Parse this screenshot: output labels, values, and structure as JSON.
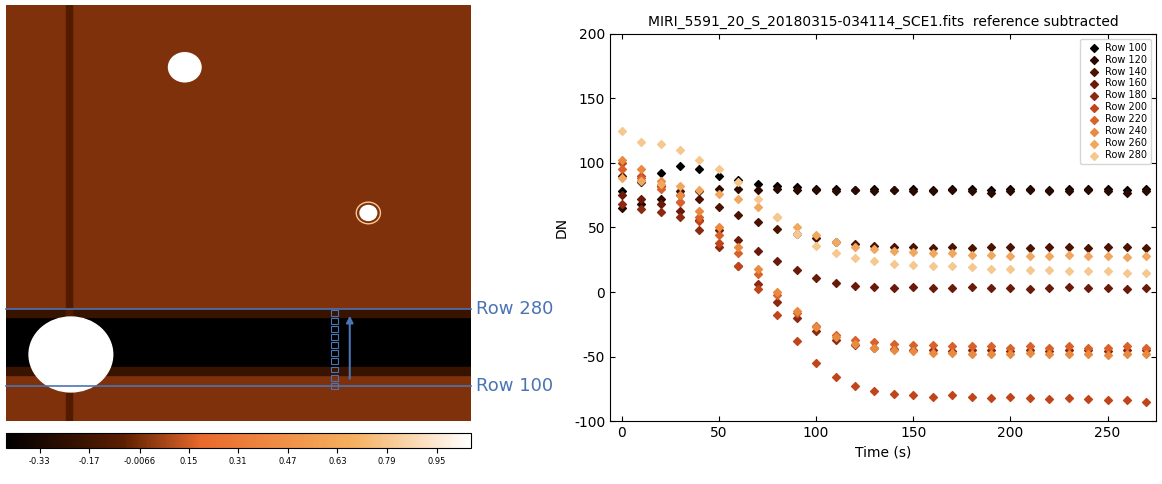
{
  "image_panel": {
    "row_labels": {
      "top": "Row 280",
      "bottom": "Row 100"
    },
    "colorbar": {
      "range": [
        -0.44,
        1.06
      ],
      "ticks": [
        -0.33,
        -0.17,
        -0.0066,
        0.15,
        0.31,
        0.47,
        0.63,
        0.79,
        0.95
      ]
    }
  },
  "chart_data": {
    "type": "scatter",
    "title": "MIRI_5591_20_S_20180315-034114_SCE1.fits  reference subtracted",
    "x_label": "Time (s)",
    "y_label": "DN",
    "x": [
      0,
      10,
      20,
      30,
      40,
      50,
      60,
      70,
      80,
      90,
      100,
      110,
      120,
      130,
      140,
      150,
      160,
      170,
      180,
      190,
      200,
      210,
      220,
      230,
      240,
      250,
      260,
      270
    ],
    "xlim": [
      -6,
      275
    ],
    "xticks": [
      0,
      50,
      100,
      150,
      200,
      250
    ],
    "ylim": [
      -100,
      200
    ],
    "yticks": [
      -100,
      -50,
      0,
      50,
      100,
      150,
      200
    ],
    "legend": "upper right",
    "marker": "diamond",
    "series": [
      {
        "name": "Row 100",
        "color": "#000000",
        "values": [
          78,
          85,
          92,
          98,
          95,
          90,
          87,
          84,
          82,
          81,
          80,
          80,
          79,
          80,
          79,
          80,
          79,
          80,
          80,
          79,
          80,
          80,
          79,
          80,
          80,
          80,
          79,
          80
        ]
      },
      {
        "name": "Row 120",
        "color": "#2a0a00",
        "values": [
          65,
          68,
          72,
          75,
          78,
          80,
          80,
          79,
          80,
          79,
          79,
          78,
          79,
          78,
          79,
          78,
          78,
          79,
          78,
          77,
          78,
          79,
          78,
          78,
          79,
          78,
          77,
          78
        ]
      },
      {
        "name": "Row 140",
        "color": "#4a1200",
        "values": [
          90,
          86,
          82,
          78,
          72,
          66,
          60,
          54,
          49,
          45,
          42,
          39,
          37,
          36,
          35,
          35,
          34,
          35,
          34,
          35,
          35,
          34,
          35,
          35,
          34,
          35,
          35,
          34
        ]
      },
      {
        "name": "Row 160",
        "color": "#6b1a0a",
        "values": [
          75,
          72,
          68,
          63,
          56,
          48,
          40,
          32,
          24,
          17,
          11,
          7,
          5,
          4,
          3,
          4,
          3,
          3,
          4,
          3,
          3,
          2,
          3,
          4,
          3,
          3,
          2,
          3
        ]
      },
      {
        "name": "Row 180",
        "color": "#8b2a10",
        "values": [
          68,
          64,
          62,
          58,
          48,
          35,
          20,
          6,
          -8,
          -20,
          -30,
          -37,
          -41,
          -43,
          -44,
          -45,
          -45,
          -46,
          -45,
          -45,
          -46,
          -45,
          -46,
          -45,
          -45,
          -46,
          -45,
          -45
        ]
      },
      {
        "name": "Row 200",
        "color": "#c0451a",
        "values": [
          100,
          90,
          82,
          70,
          55,
          38,
          20,
          2,
          -18,
          -38,
          -55,
          -66,
          -73,
          -77,
          -79,
          -80,
          -81,
          -80,
          -81,
          -82,
          -81,
          -82,
          -83,
          -82,
          -83,
          -84,
          -84,
          -85
        ]
      },
      {
        "name": "Row 220",
        "color": "#d8622a",
        "values": [
          95,
          88,
          80,
          70,
          58,
          44,
          30,
          14,
          -2,
          -16,
          -26,
          -33,
          -37,
          -39,
          -40,
          -41,
          -41,
          -42,
          -42,
          -42,
          -43,
          -42,
          -43,
          -42,
          -43,
          -43,
          -42,
          -43
        ]
      },
      {
        "name": "Row 240",
        "color": "#e88a40",
        "values": [
          102,
          95,
          86,
          75,
          63,
          50,
          35,
          18,
          0,
          -15,
          -27,
          -35,
          -40,
          -43,
          -45,
          -46,
          -47,
          -47,
          -48,
          -48,
          -48,
          -47,
          -48,
          -48,
          -48,
          -49,
          -48,
          -48
        ]
      },
      {
        "name": "Row 260",
        "color": "#f0a860",
        "values": [
          88,
          86,
          84,
          82,
          79,
          76,
          72,
          66,
          58,
          50,
          44,
          39,
          35,
          33,
          32,
          31,
          30,
          30,
          29,
          29,
          28,
          28,
          28,
          29,
          28,
          28,
          27,
          28
        ]
      },
      {
        "name": "Row 280",
        "color": "#f5c890",
        "values": [
          125,
          116,
          115,
          110,
          102,
          95,
          85,
          72,
          58,
          45,
          36,
          30,
          26,
          24,
          22,
          21,
          20,
          20,
          19,
          18,
          18,
          17,
          17,
          16,
          16,
          16,
          15,
          15
        ]
      }
    ]
  }
}
